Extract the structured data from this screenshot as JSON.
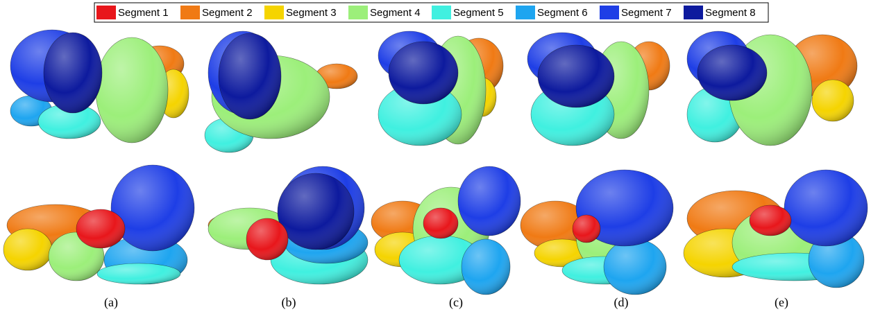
{
  "legend": [
    {
      "label": "Segment 1",
      "color": "#e8161b"
    },
    {
      "label": "Segment 2",
      "color": "#f07a14"
    },
    {
      "label": "Segment 3",
      "color": "#f5d400"
    },
    {
      "label": "Segment 4",
      "color": "#9cef7a"
    },
    {
      "label": "Segment 5",
      "color": "#40f0e0"
    },
    {
      "label": "Segment 6",
      "color": "#1ea5f0"
    },
    {
      "label": "Segment 7",
      "color": "#1e3ee6"
    },
    {
      "label": "Segment 8",
      "color": "#0d1a9e"
    }
  ],
  "captions": [
    "(a)",
    "(b)",
    "(c)",
    "(d)",
    "(e)"
  ]
}
